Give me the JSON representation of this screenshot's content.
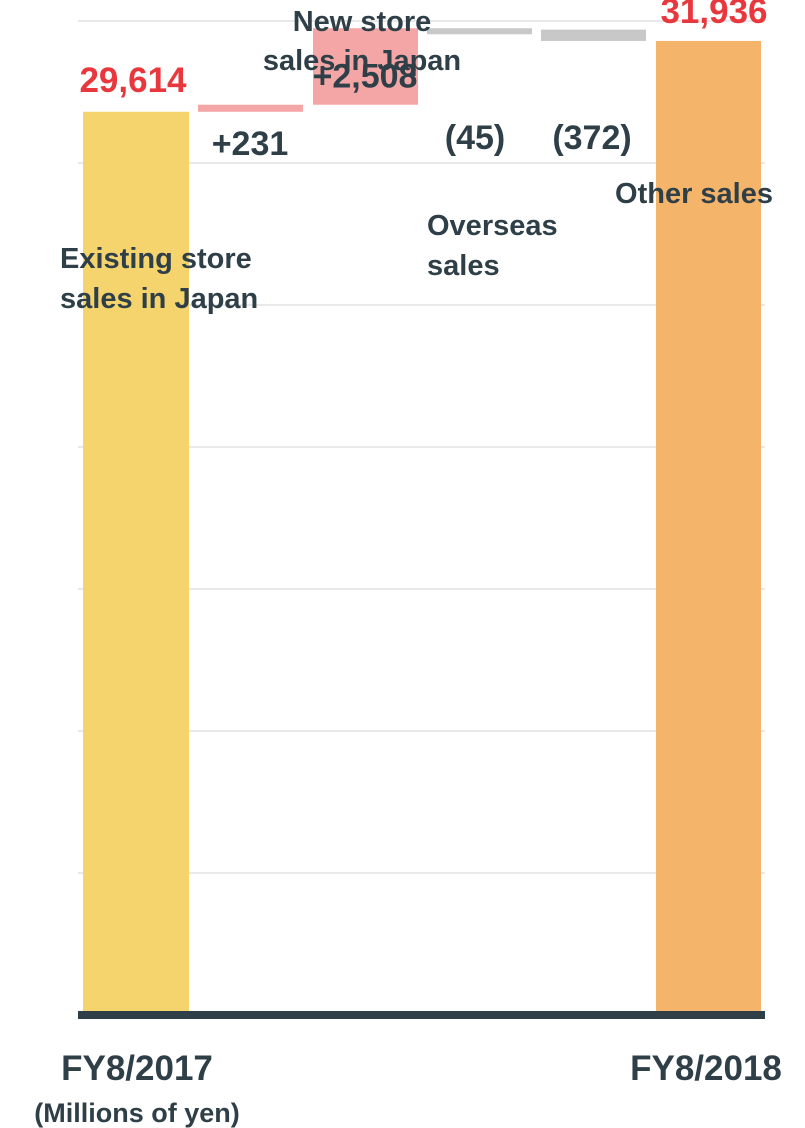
{
  "chart_data": {
    "type": "waterfall",
    "unit_label": "(Millions of yen)",
    "categories": [
      "FY8/2017",
      "FY8/2018"
    ],
    "start": {
      "category": "FY8/2017",
      "value": 29614,
      "label": "29,614",
      "color": "#f5d46e"
    },
    "end": {
      "category": "FY8/2018",
      "value": 31936,
      "label": "31,936",
      "color": "#f4b46a"
    },
    "steps": [
      {
        "name": "Existing store sales in Japan",
        "name_lines": [
          "Existing store",
          "sales in Japan"
        ],
        "value": 231,
        "label": "+231",
        "color": "#f4a6a6"
      },
      {
        "name": "New store sales in Japan",
        "name_lines": [
          "New store",
          "sales in Japan"
        ],
        "value": 2508,
        "label": "+2,508",
        "color": "#f4a6a6"
      },
      {
        "name": "Overseas sales",
        "name_lines": [
          "Overseas",
          "sales"
        ],
        "value": -45,
        "label": "(45)",
        "color": "#c8c8c8"
      },
      {
        "name": "Other sales",
        "name_lines": [
          "Other sales"
        ],
        "value": -372,
        "label": "(372)",
        "color": "#c8c8c8"
      }
    ],
    "value_label_colors": {
      "totals": "#e8383d",
      "steps": "#2f3f48"
    },
    "category_color": "#2f3f48",
    "name_color": "#2f3f48",
    "grid": true
  }
}
